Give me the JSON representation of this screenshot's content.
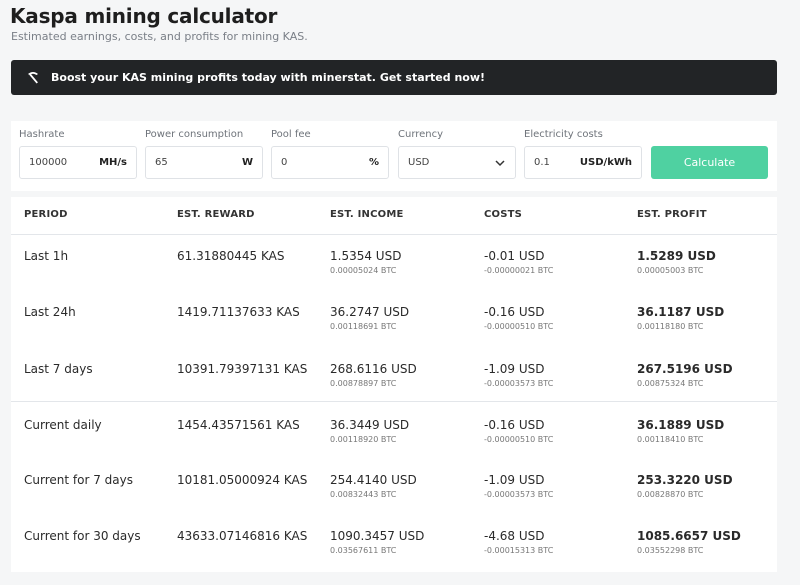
{
  "header": {
    "title": "Kaspa mining calculator",
    "subtitle": "Estimated earnings, costs, and profits for mining KAS."
  },
  "promo": {
    "icon": "pickaxe-icon",
    "text": "Boost your KAS mining profits today with minerstat. Get started now!"
  },
  "form": {
    "hashrate": {
      "label": "Hashrate",
      "value": "100000",
      "unit": "MH/s"
    },
    "power": {
      "label": "Power consumption",
      "value": "65",
      "unit": "W"
    },
    "pool_fee": {
      "label": "Pool fee",
      "value": "0",
      "unit": "%"
    },
    "currency": {
      "label": "Currency",
      "value": "USD"
    },
    "electricity": {
      "label": "Electricity costs",
      "value": "0.1",
      "unit": "USD/kWh"
    },
    "calculate_label": "Calculate"
  },
  "table": {
    "headers": {
      "period": "PERIOD",
      "reward": "EST. REWARD",
      "income": "EST. INCOME",
      "costs": "COSTS",
      "profit": "EST. PROFIT"
    },
    "rows": [
      {
        "period": "Last 1h",
        "reward": "61.31880445 KAS",
        "income": "1.5354 USD",
        "income_btc": "0.00005024 BTC",
        "costs": "-0.01 USD",
        "costs_btc": "-0.00000021 BTC",
        "profit": "1.5289 USD",
        "profit_btc": "0.00005003 BTC"
      },
      {
        "period": "Last 24h",
        "reward": "1419.71137633 KAS",
        "income": "36.2747 USD",
        "income_btc": "0.00118691 BTC",
        "costs": "-0.16 USD",
        "costs_btc": "-0.00000510 BTC",
        "profit": "36.1187 USD",
        "profit_btc": "0.00118180 BTC"
      },
      {
        "period": "Last 7 days",
        "reward": "10391.79397131 KAS",
        "income": "268.6116 USD",
        "income_btc": "0.00878897 BTC",
        "costs": "-1.09 USD",
        "costs_btc": "-0.00003573 BTC",
        "profit": "267.5196 USD",
        "profit_btc": "0.00875324 BTC"
      },
      {
        "period": "Current daily",
        "reward": "1454.43571561 KAS",
        "income": "36.3449 USD",
        "income_btc": "0.00118920 BTC",
        "costs": "-0.16 USD",
        "costs_btc": "-0.00000510 BTC",
        "profit": "36.1889 USD",
        "profit_btc": "0.00118410 BTC"
      },
      {
        "period": "Current for 7 days",
        "reward": "10181.05000924 KAS",
        "income": "254.4140 USD",
        "income_btc": "0.00832443 BTC",
        "costs": "-1.09 USD",
        "costs_btc": "-0.00003573 BTC",
        "profit": "253.3220 USD",
        "profit_btc": "0.00828870 BTC"
      },
      {
        "period": "Current for 30 days",
        "reward": "43633.07146816 KAS",
        "income": "1090.3457 USD",
        "income_btc": "0.03567611 BTC",
        "costs": "-4.68 USD",
        "costs_btc": "-0.00015313 BTC",
        "profit": "1085.6657 USD",
        "profit_btc": "0.03552298 BTC"
      }
    ]
  },
  "colors": {
    "accent": "#4fd1a1",
    "promo_bg": "#222426",
    "page_bg": "#f5f6f7"
  }
}
